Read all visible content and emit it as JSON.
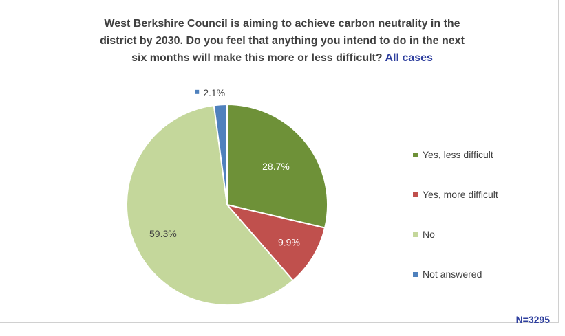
{
  "title": {
    "line1": "West Berkshire Council is aiming to achieve carbon neutrality in the",
    "line2": "district by 2030. Do you feel that anything you intend to do in the next",
    "line3_main": "six months will make this more or less difficult?",
    "line3_accent": "All cases"
  },
  "sample_size": "N=3295",
  "chart_data": {
    "type": "pie",
    "title": "West Berkshire Council is aiming to achieve carbon neutrality in the district by 2030. Do you feel that anything you intend to do in the next six months will make this more or less difficult? All cases",
    "categories": [
      "Yes, less difficult",
      "Yes, more difficult",
      "No",
      "Not answered"
    ],
    "values": [
      28.7,
      9.9,
      59.3,
      2.1
    ],
    "value_labels": [
      "28.7%",
      "9.9%",
      "59.3%",
      "2.1%"
    ],
    "colors": [
      "#6e9138",
      "#c0504d",
      "#c4d79b",
      "#4f81bd"
    ],
    "legend_position": "right",
    "start_angle_deg": 0,
    "direction": "clockwise"
  }
}
